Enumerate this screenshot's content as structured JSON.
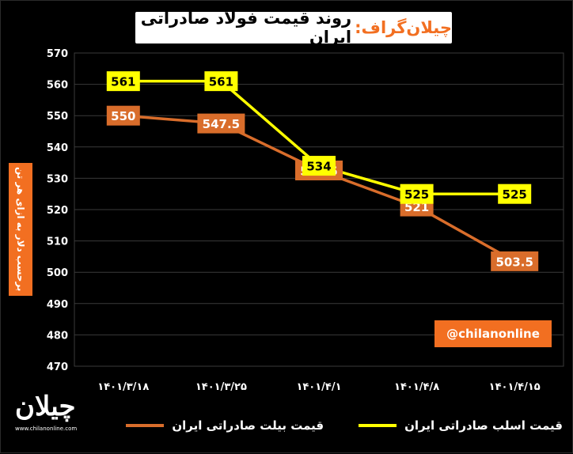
{
  "title": {
    "brand": "چیلان‌گراف",
    "colon": ":",
    "text": "روند قیمت فولاد صادراتی ایران"
  },
  "handle": "@chilanonline",
  "logo": {
    "mark": "چیلان",
    "url": "www.chilanonline.com"
  },
  "colors": {
    "billet": "#d96d2b",
    "slab": "#ffff00",
    "label_box": "#f26f21",
    "grid": "#3a3a3a"
  },
  "chart_data": {
    "type": "line",
    "categories": [
      "۱۴۰۱/۳/۱۸",
      "۱۴۰۱/۳/۲۵",
      "۱۴۰۱/۴/۱",
      "۱۴۰۱/۴/۸",
      "۱۴۰۱/۴/۱۵"
    ],
    "ylabel": "برحسب دلار به ازای هر تن",
    "ylim": [
      470,
      570
    ],
    "yticks": [
      470,
      480,
      490,
      500,
      510,
      520,
      530,
      540,
      550,
      560,
      570
    ],
    "grid": true,
    "legend_position": "bottom",
    "series": [
      {
        "name": "قیمت اسلب صادراتی ایران",
        "color": "#ffff00",
        "values": [
          561,
          561,
          534,
          525,
          525
        ],
        "labels": [
          "561",
          "561",
          "534",
          "525",
          "525"
        ]
      },
      {
        "name": "قیمت بیلت صادراتی ایران",
        "color": "#d96d2b",
        "values": [
          550,
          547.5,
          532.5,
          521,
          503.5
        ],
        "labels": [
          "550",
          "547.5",
          "532.5",
          "521",
          "503.5"
        ]
      }
    ]
  }
}
